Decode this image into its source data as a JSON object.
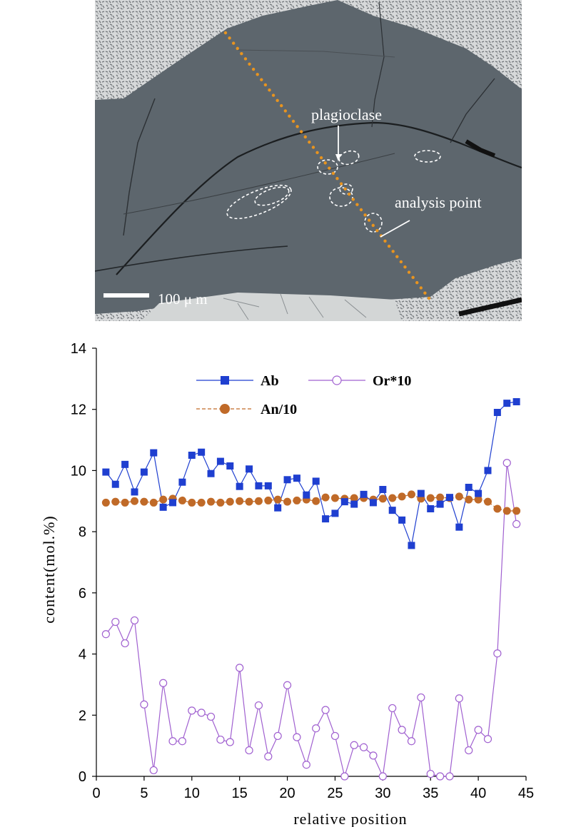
{
  "micrograph": {
    "labels": {
      "plagioclase": "plagioclase",
      "analysis_point": "analysis point",
      "scale_bar": "100 μ m"
    },
    "colors": {
      "background": "#5d666d",
      "matrix_rock": "#cfd2d3",
      "analysis_dots": "#e8941f",
      "outlines": "#ffffff"
    }
  },
  "chart_data": {
    "type": "line",
    "xlabel": "relative position",
    "ylabel": "content(mol.%)",
    "xlim": [
      0,
      45
    ],
    "ylim": [
      0,
      14
    ],
    "xticks": [
      "0",
      "5",
      "10",
      "15",
      "20",
      "25",
      "30",
      "35",
      "40",
      "45"
    ],
    "yticks": [
      "0",
      "2",
      "4",
      "6",
      "8",
      "10",
      "12",
      "14"
    ],
    "x": [
      1,
      2,
      3,
      4,
      5,
      6,
      7,
      8,
      9,
      10,
      11,
      12,
      13,
      14,
      15,
      16,
      17,
      18,
      19,
      20,
      21,
      22,
      23,
      24,
      25,
      26,
      27,
      28,
      29,
      30,
      31,
      32,
      33,
      34,
      35,
      36,
      37,
      38,
      39,
      40,
      41,
      42,
      43,
      44
    ],
    "legend_placement": "top-center",
    "series": [
      {
        "name": "Ab",
        "color": "#1f3fd0",
        "marker": "square",
        "values": [
          9.95,
          9.55,
          10.2,
          9.3,
          9.95,
          10.58,
          8.8,
          8.95,
          9.62,
          10.5,
          10.6,
          9.9,
          10.3,
          10.15,
          9.48,
          10.05,
          9.5,
          9.5,
          8.78,
          9.7,
          9.75,
          9.2,
          9.65,
          8.42,
          8.6,
          8.98,
          8.9,
          9.22,
          8.95,
          9.38,
          8.7,
          8.38,
          7.55,
          9.25,
          8.75,
          8.9,
          9.12,
          8.15,
          9.45,
          9.25,
          10.0,
          11.9,
          12.2,
          12.25
        ]
      },
      {
        "name": "Or*10",
        "color": "#a060d0",
        "marker": "open-circle",
        "values": [
          4.65,
          5.05,
          4.35,
          5.1,
          2.35,
          0.2,
          3.05,
          1.15,
          1.15,
          2.15,
          2.08,
          1.95,
          1.2,
          1.12,
          3.55,
          0.85,
          2.32,
          0.65,
          1.32,
          2.98,
          1.28,
          0.38,
          1.57,
          2.17,
          1.32,
          0.0,
          1.02,
          0.95,
          0.68,
          0.0,
          2.23,
          1.52,
          1.15,
          2.58,
          0.08,
          0.0,
          0.0,
          2.55,
          0.85,
          1.52,
          1.22,
          4.02,
          10.25,
          8.25
        ]
      },
      {
        "name": "An/10",
        "color": "#c06a28",
        "marker": "filled-circle",
        "values": [
          8.95,
          8.98,
          8.95,
          9.0,
          8.98,
          8.95,
          9.05,
          9.08,
          9.02,
          8.95,
          8.95,
          8.98,
          8.95,
          8.98,
          9.0,
          8.98,
          9.0,
          9.02,
          9.05,
          8.98,
          9.02,
          9.05,
          9.0,
          9.12,
          9.1,
          9.08,
          9.1,
          9.1,
          9.05,
          9.08,
          9.1,
          9.15,
          9.22,
          9.08,
          9.1,
          9.12,
          9.1,
          9.15,
          9.05,
          9.05,
          8.98,
          8.75,
          8.68,
          8.68
        ]
      }
    ]
  }
}
